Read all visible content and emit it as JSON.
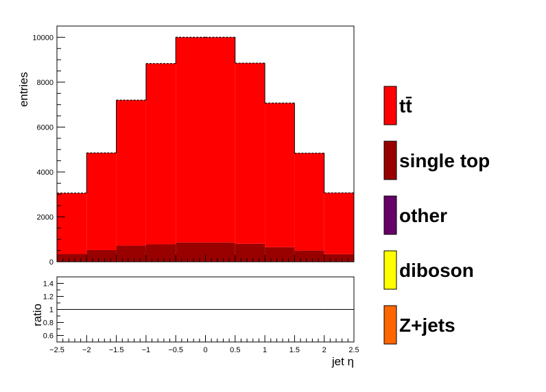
{
  "chart_data": [
    {
      "type": "bar",
      "stacked": true,
      "xlabel": "jet η",
      "ylabel": "entries",
      "xlim": [
        -2.5,
        2.5
      ],
      "ylim": [
        0,
        10500
      ],
      "bin_edges": [
        -2.5,
        -2.0,
        -1.5,
        -1.0,
        -0.5,
        0.0,
        0.5,
        1.0,
        1.5,
        2.0,
        2.5
      ],
      "x_ticks": [
        -2.5,
        -2,
        -1.5,
        -1,
        -0.5,
        0,
        0.5,
        1,
        1.5,
        2,
        2.5
      ],
      "x_tick_labels": [
        "−2.5",
        "−2",
        "−1.5",
        "−1",
        "−0.5",
        "0",
        "0.5",
        "1",
        "1.5",
        "2",
        "2.5"
      ],
      "y_ticks": [
        0,
        2000,
        4000,
        6000,
        8000,
        10000
      ],
      "y_tick_labels": [
        "0",
        "2000",
        "4000",
        "6000",
        "8000",
        "10000"
      ],
      "series": [
        {
          "name": "Z+jets",
          "color": "#ff6600",
          "values": [
            0,
            0,
            0,
            0,
            0,
            0,
            0,
            0,
            0,
            0
          ]
        },
        {
          "name": "diboson",
          "color": "#ffff00",
          "values": [
            0,
            0,
            0,
            0,
            0,
            0,
            0,
            0,
            0,
            0
          ]
        },
        {
          "name": "other",
          "color": "#660066",
          "values": [
            0,
            0,
            0,
            0,
            0,
            0,
            0,
            0,
            0,
            0
          ]
        },
        {
          "name": "single top",
          "color": "#990000",
          "values": [
            350,
            520,
            720,
            780,
            860,
            860,
            800,
            650,
            500,
            340
          ]
        },
        {
          "name": "tt̄",
          "color": "#ff0000",
          "values": [
            2710,
            4330,
            6480,
            8050,
            9140,
            9140,
            8050,
            6420,
            4340,
            2730
          ]
        }
      ],
      "data_points": {
        "name": "data",
        "values": [
          3060,
          4850,
          7200,
          8830,
          10000,
          10000,
          8850,
          7070,
          4840,
          3070
        ]
      },
      "legend_order": [
        "tt̄",
        "single top",
        "other",
        "diboson",
        "Z+jets"
      ],
      "legend_placement": "right"
    },
    {
      "type": "line",
      "xlabel": "jet η",
      "ylabel": "ratio",
      "xlim": [
        -2.5,
        2.5
      ],
      "ylim": [
        0.5,
        1.5
      ],
      "reference_line": 1.0,
      "x": [
        -2.25,
        -1.75,
        -1.25,
        -0.75,
        -0.25,
        0.25,
        0.75,
        1.25,
        1.75,
        2.25
      ],
      "values": [
        1.0,
        1.0,
        1.0,
        1.0,
        1.0,
        1.0,
        1.0,
        1.0,
        1.0,
        1.0
      ],
      "y_ticks": [
        0.6,
        0.8,
        1,
        1.2,
        1.4
      ],
      "y_tick_labels": [
        "0.6",
        "0.8",
        "1",
        "1.2",
        "1.4"
      ]
    }
  ]
}
